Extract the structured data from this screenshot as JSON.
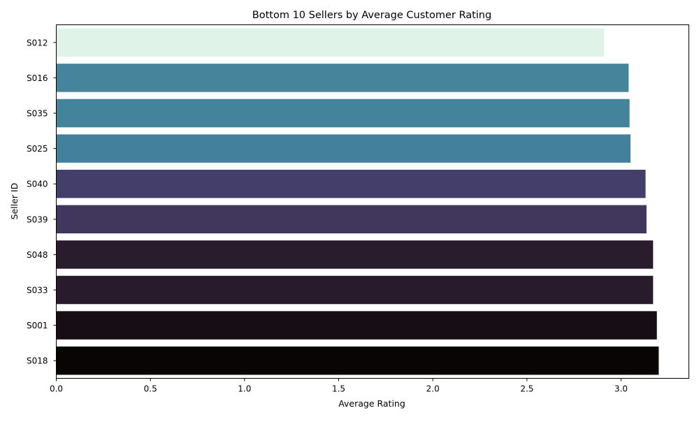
{
  "chart_data": {
    "type": "bar",
    "orientation": "horizontal",
    "title": "Bottom 10 Sellers by Average Customer Rating",
    "xlabel": "Average Rating",
    "ylabel": "Seller ID",
    "xlim": [
      0,
      3.36
    ],
    "xticks": [
      "0.0",
      "0.5",
      "1.0",
      "1.5",
      "2.0",
      "2.5",
      "3.0"
    ],
    "xtick_values": [
      0,
      0.5,
      1.0,
      1.5,
      2.0,
      2.5,
      3.0
    ],
    "grid": false,
    "legend": "none",
    "categories": [
      "S012",
      "S016",
      "S035",
      "S025",
      "S040",
      "S039",
      "S048",
      "S033",
      "S001",
      "S018"
    ],
    "values": [
      2.91,
      3.04,
      3.045,
      3.05,
      3.13,
      3.135,
      3.17,
      3.17,
      3.19,
      3.2
    ],
    "colors": [
      "#e0f3e8",
      "#45849b",
      "#44849b",
      "#43809b",
      "#443e6a",
      "#41365c",
      "#291c2d",
      "#281c2c",
      "#170d15",
      "#0a0505"
    ]
  }
}
